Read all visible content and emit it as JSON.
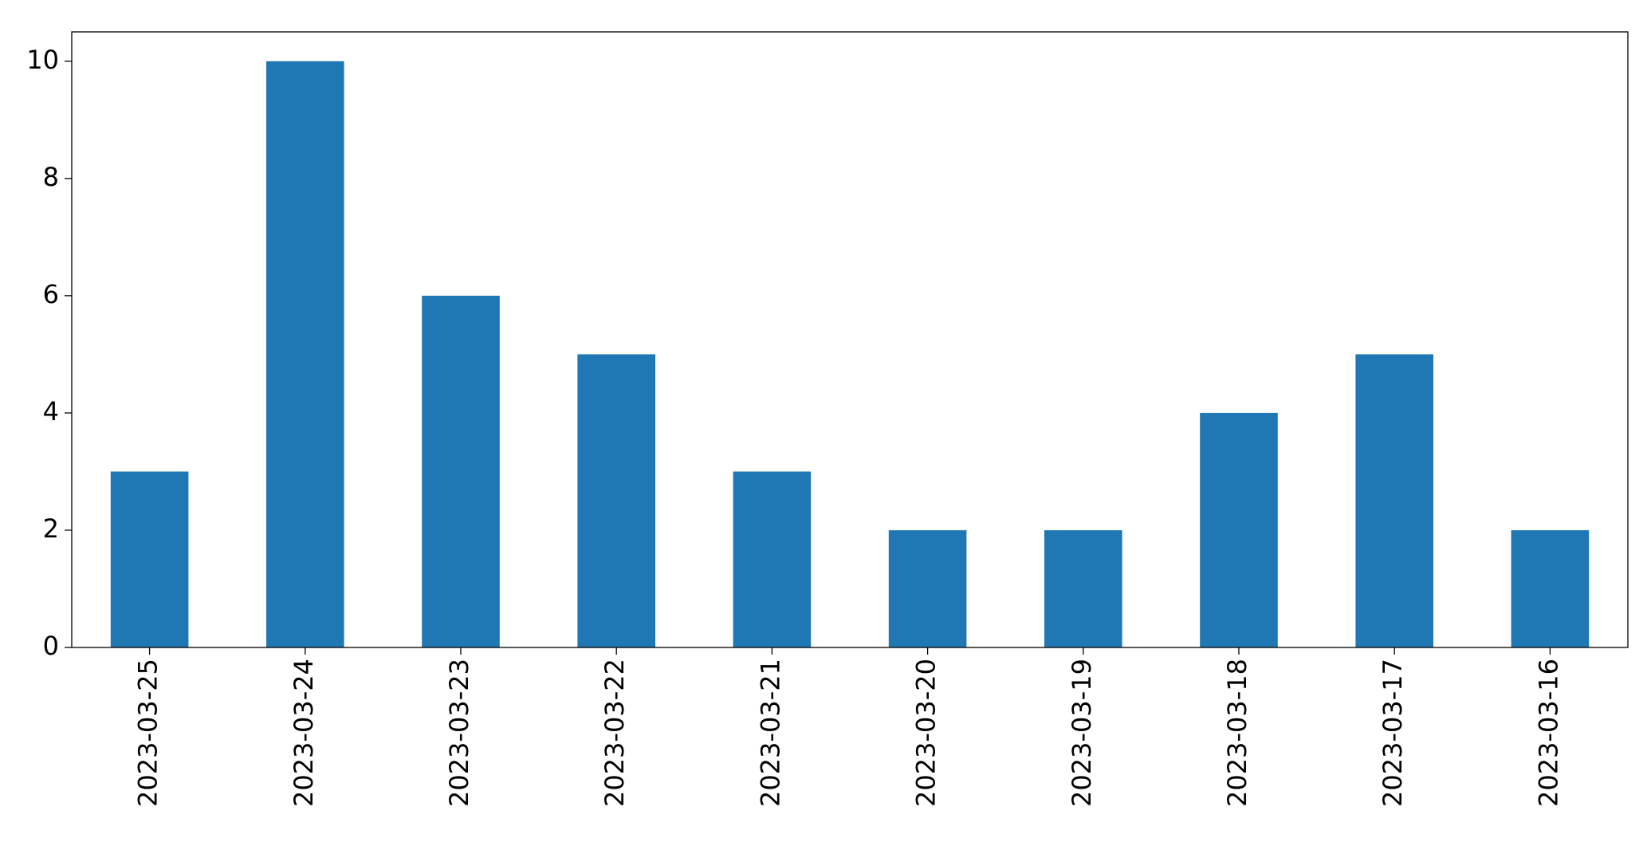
{
  "chart_data": {
    "type": "bar",
    "categories": [
      "2023-03-25",
      "2023-03-24",
      "2023-03-23",
      "2023-03-22",
      "2023-03-21",
      "2023-03-20",
      "2023-03-19",
      "2023-03-18",
      "2023-03-17",
      "2023-03-16"
    ],
    "values": [
      3,
      10,
      6,
      5,
      3,
      2,
      2,
      4,
      5,
      2
    ],
    "color": "#1f77b4",
    "ylim": [
      0,
      10.5
    ],
    "yticks": [
      0,
      2,
      4,
      6,
      8,
      10
    ],
    "grid": false
  }
}
